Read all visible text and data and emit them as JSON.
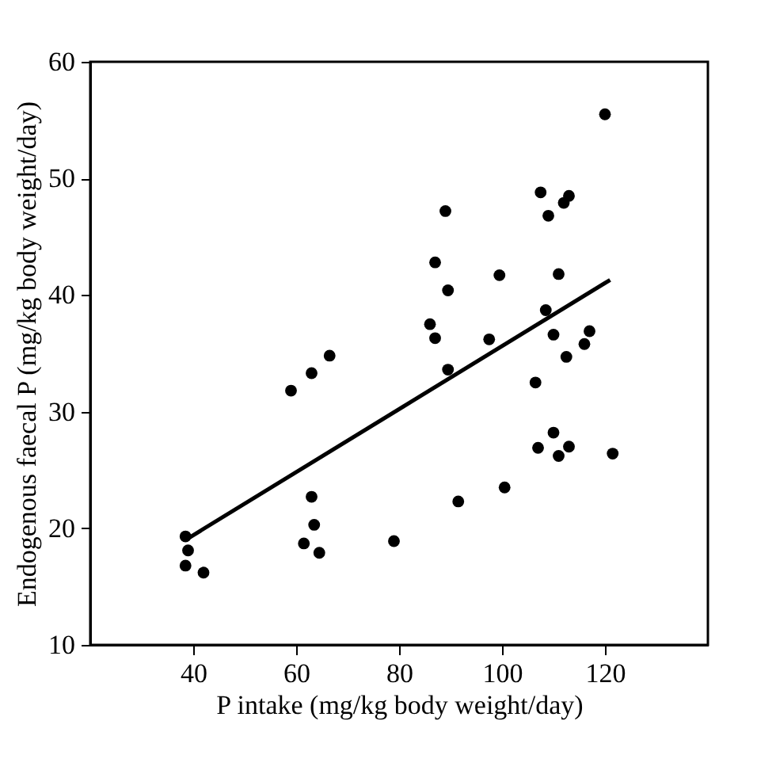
{
  "chart_data": {
    "type": "scatter",
    "xlabel": "P intake (mg/kg body weight/day)",
    "ylabel": "Endogenous faecal P (mg/kg body weight/day)",
    "xlim": [
      20,
      140
    ],
    "xticks": [
      40,
      60,
      80,
      100,
      120
    ],
    "ylim": [
      10,
      60
    ],
    "yticks": [
      10,
      20,
      30,
      40,
      50,
      60
    ],
    "grid": false,
    "series": [
      {
        "marker": "circle",
        "color": "#000000",
        "x": [
          38.5,
          39,
          38.5,
          42,
          59,
          63,
          66.5,
          63,
          63.5,
          61.5,
          64.5,
          79,
          86,
          87,
          87,
          89,
          89.5,
          89.5,
          91.5,
          97.5,
          99.5,
          100.5,
          106.5,
          107,
          107.5,
          108.5,
          109,
          110,
          110,
          111,
          111,
          112,
          113,
          112.5,
          113,
          116,
          117,
          120,
          121.5
        ],
        "values": [
          19.3,
          18.1,
          16.8,
          16.2,
          31.8,
          33.3,
          34.8,
          22.7,
          20.3,
          18.7,
          17.9,
          18.9,
          37.5,
          42.8,
          36.3,
          47.2,
          40.4,
          33.6,
          22.3,
          36.2,
          41.7,
          23.5,
          32.5,
          26.9,
          48.8,
          38.7,
          46.8,
          36.6,
          28.2,
          41.8,
          26.2,
          47.9,
          48.5,
          34.7,
          27,
          35.8,
          36.9,
          55.5,
          26.4
        ]
      },
      {
        "type": "line",
        "color": "#000000",
        "x": [
          38.5,
          121
        ],
        "values": [
          19,
          41.3
        ]
      }
    ]
  }
}
